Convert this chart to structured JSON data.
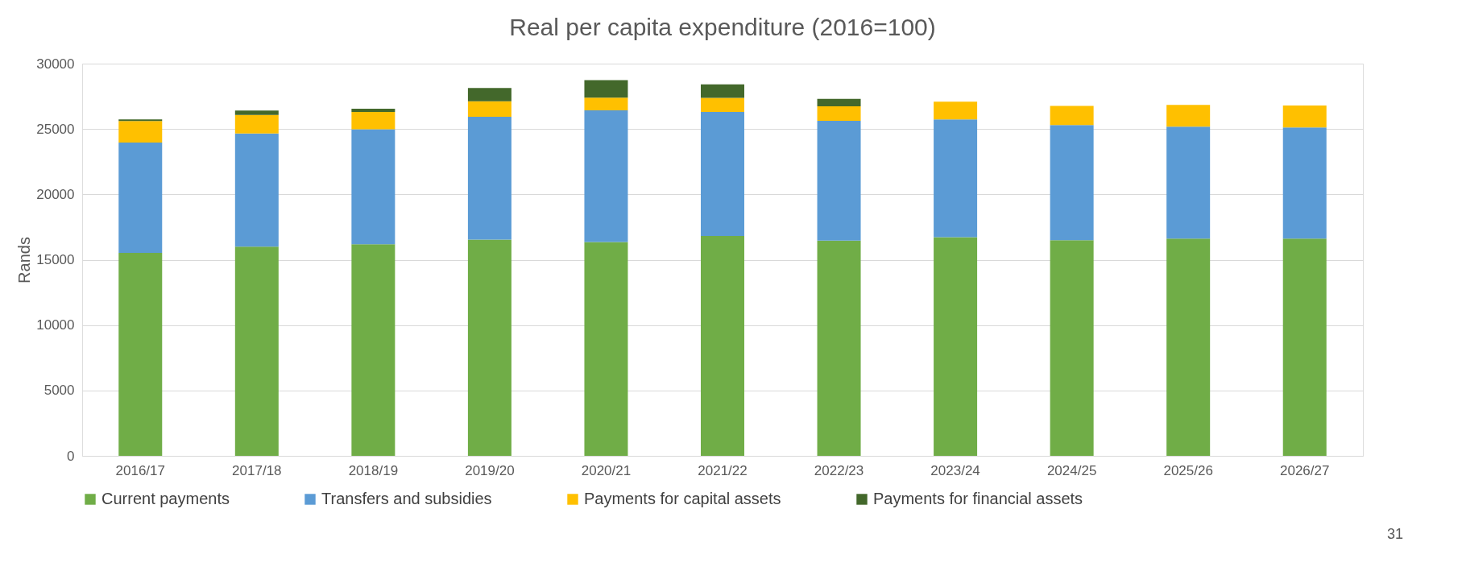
{
  "chart_data": {
    "type": "bar",
    "title": "Real per capita expenditure (2016=100)",
    "ylabel": "Rands",
    "categories": [
      "2016/17",
      "2017/18",
      "2018/19",
      "2019/20",
      "2020/21",
      "2021/22",
      "2022/23",
      "2023/24",
      "2024/25",
      "2025/26",
      "2026/27"
    ],
    "stacked": true,
    "ylim": [
      0,
      30000
    ],
    "yticks": [
      0,
      5000,
      10000,
      15000,
      20000,
      25000,
      30000
    ],
    "grid": "y",
    "legend": "bottom",
    "series": [
      {
        "name": "Current payments",
        "color": "#70ad47",
        "values": [
          15520,
          16000,
          16180,
          16540,
          16360,
          16820,
          16470,
          16730,
          16500,
          16620,
          16610
        ]
      },
      {
        "name": "Transfers and subsidies",
        "color": "#5b9bd5",
        "values": [
          8440,
          8650,
          8800,
          9390,
          10070,
          9480,
          9150,
          9000,
          8810,
          8560,
          8510
        ]
      },
      {
        "name": "Payments for capital assets",
        "color": "#ffc000",
        "values": [
          1650,
          1430,
          1330,
          1190,
          970,
          1080,
          1120,
          1360,
          1460,
          1670,
          1670
        ]
      },
      {
        "name": "Payments for financial assets",
        "color": "#43682b",
        "values": [
          120,
          330,
          240,
          1010,
          1330,
          1040,
          570,
          null,
          null,
          null,
          null
        ]
      }
    ],
    "annotations": [
      "31"
    ]
  }
}
